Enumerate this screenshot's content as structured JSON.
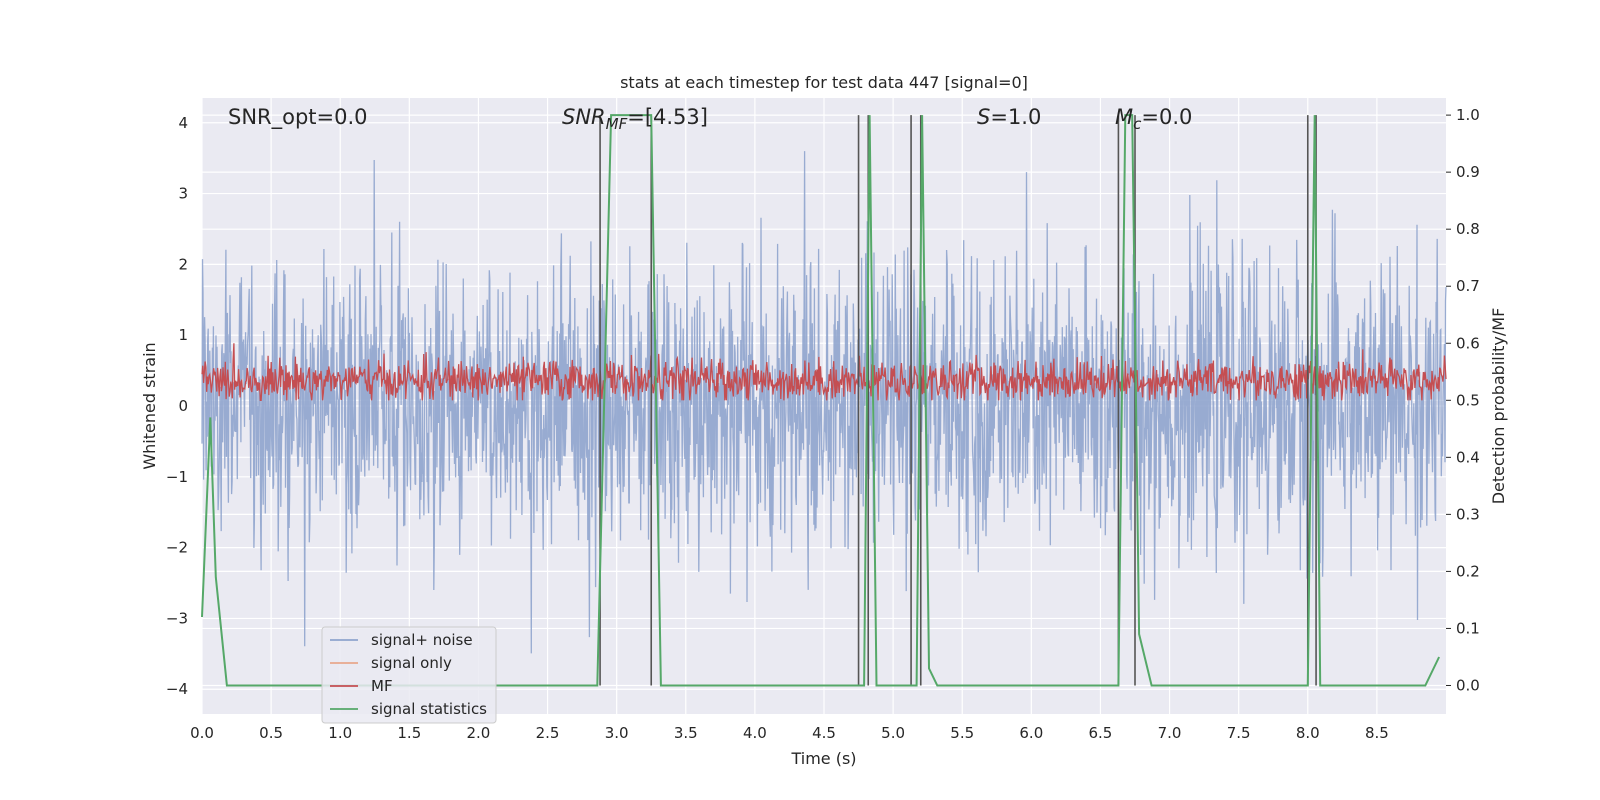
{
  "chart_data": {
    "type": "line",
    "title": "stats at each timestep for test data 447 [signal=0]",
    "xlabel": "Time (s)",
    "ylabel_left": "Whitened strain",
    "ylabel_right": "Detection probability/MF",
    "xlim": [
      0.0,
      9.0
    ],
    "ylim_left": [
      -4.35,
      4.35
    ],
    "ylim_right": [
      -0.05,
      1.03
    ],
    "x_ticks": [
      "0.0",
      "0.5",
      "1.0",
      "1.5",
      "2.0",
      "2.5",
      "3.0",
      "3.5",
      "4.0",
      "4.5",
      "5.0",
      "5.5",
      "6.0",
      "6.5",
      "7.0",
      "7.5",
      "8.0",
      "8.5"
    ],
    "y_ticks_left": [
      "−4",
      "−3",
      "−2",
      "−1",
      "0",
      "1",
      "2",
      "3",
      "4"
    ],
    "y_ticks_right": [
      "0.0",
      "0.1",
      "0.2",
      "0.3",
      "0.4",
      "0.5",
      "0.6",
      "0.7",
      "0.8",
      "0.9",
      "1.0"
    ],
    "grid": true,
    "legend_position": "lower-left",
    "annotations": {
      "snr_opt": "SNR_opt=0.0",
      "snr_mf_main": "SNR",
      "snr_mf_sub": "MF",
      "snr_mf_value": "=[4.53]",
      "s_main": "S",
      "s_value": "=1.0",
      "mc_main": "M",
      "mc_sub": "c",
      "mc_value": "=0.0"
    },
    "series": [
      {
        "name": "signal+ noise",
        "axis": "left",
        "color": "#8fa4cd",
        "approx_std": 1.0,
        "approx_peak": 3.6
      },
      {
        "name": "signal only",
        "axis": "left",
        "color": "#e8a78c",
        "values": []
      },
      {
        "name": "MF",
        "axis": "right",
        "color": "#c44e52",
        "approx_mean": 0.535,
        "approx_range": [
          0.5,
          0.6
        ]
      },
      {
        "name": "signal statistics",
        "axis": "right",
        "color": "#55a868",
        "x": [
          0.0,
          0.06,
          0.1,
          0.18,
          0.8,
          2.86,
          2.96,
          3.25,
          3.32,
          4.74,
          4.79,
          4.83,
          4.88,
          5.13,
          5.17,
          5.21,
          5.26,
          5.32,
          6.63,
          6.68,
          6.73,
          6.78,
          6.87,
          8.0,
          8.05,
          8.09,
          8.15,
          8.85,
          8.95
        ],
        "y": [
          0.12,
          0.47,
          0.19,
          0.0,
          0.0,
          0.0,
          1.0,
          1.0,
          0.0,
          0.0,
          0.0,
          1.0,
          0.0,
          0.0,
          0.0,
          1.0,
          0.03,
          0.0,
          0.0,
          1.0,
          1.0,
          0.09,
          0.0,
          0.0,
          1.0,
          0.0,
          0.0,
          0.0,
          0.05
        ]
      }
    ],
    "vertical_markers_x": [
      2.88,
      3.25,
      4.75,
      4.82,
      5.13,
      5.2,
      6.63,
      6.75,
      8.0,
      8.06
    ]
  }
}
